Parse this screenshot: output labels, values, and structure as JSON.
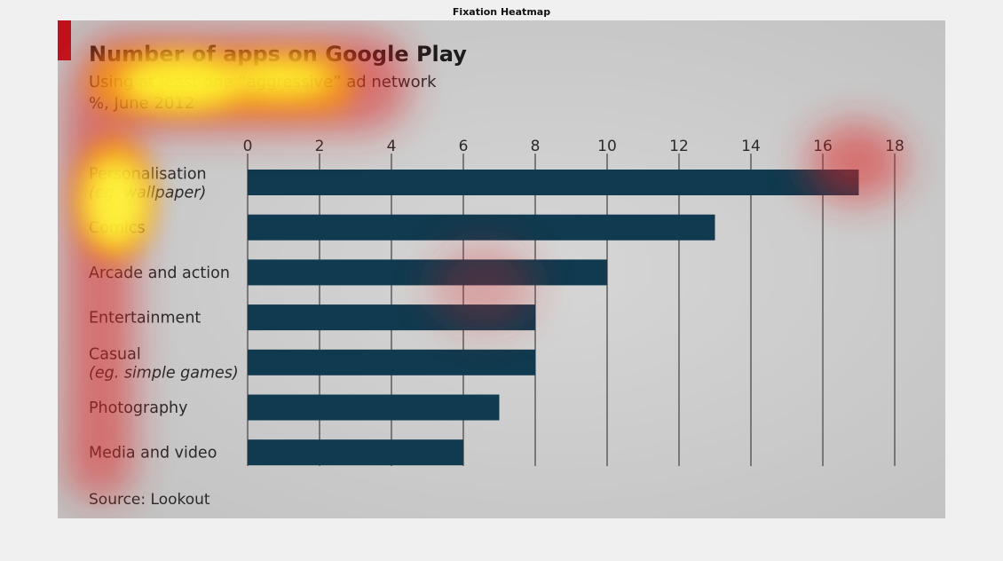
{
  "figure_title": "Fixation Heatmap",
  "chart_data": {
    "type": "bar",
    "orientation": "horizontal",
    "title": "Number of apps on Google Play",
    "subtitle": "Using at least one “aggressive” ad network",
    "units": "%, June 2012",
    "categories": [
      [
        "Personalisation",
        "(eg. wallpaper)"
      ],
      [
        "Comics"
      ],
      [
        "Arcade and action"
      ],
      [
        "Entertainment"
      ],
      [
        "Casual",
        "(eg. simple games)"
      ],
      [
        "Photography"
      ],
      [
        "Media and video"
      ]
    ],
    "values": [
      17,
      13,
      10,
      8,
      8,
      7,
      6
    ],
    "xlim": [
      0,
      18
    ],
    "xticks": [
      0,
      2,
      4,
      6,
      8,
      10,
      12,
      14,
      16,
      18
    ],
    "grid": true,
    "source": "Source: Lookout",
    "colors": {
      "bar": "#0f3a4f",
      "accent": "#c0111b",
      "title": "#1c1c1c",
      "text": "#2a2a2a",
      "background": "#cbcbcb",
      "gridline": "#5c5c5c"
    }
  }
}
